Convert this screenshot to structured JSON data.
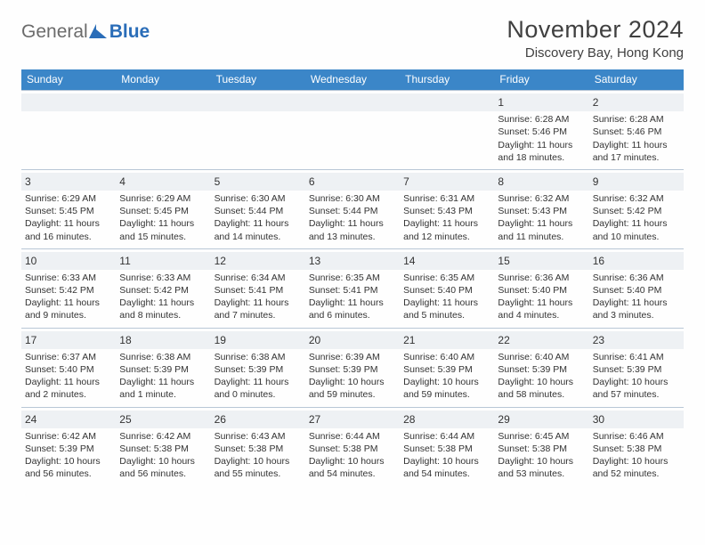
{
  "logo": {
    "text1": "General",
    "text2": "Blue"
  },
  "header": {
    "month_title": "November 2024",
    "location": "Discovery Bay, Hong Kong"
  },
  "weekdays": [
    "Sunday",
    "Monday",
    "Tuesday",
    "Wednesday",
    "Thursday",
    "Friday",
    "Saturday"
  ],
  "style": {
    "page_bg": "#fefefe",
    "header_bg": "#3b86c8",
    "header_text": "#ffffff",
    "daynum_bg": "#eef1f4",
    "grid_border": "#b9c7d6",
    "text_color": "#333333",
    "logo_gray": "#6b6b6b",
    "logo_blue": "#2a6db8",
    "month_title_fontsize": 27,
    "location_fontsize": 15,
    "weekday_fontsize": 12,
    "cell_fontsize": 10.5,
    "daynum_fontsize": 12
  },
  "weeks": [
    [
      {
        "n": "",
        "empty": true
      },
      {
        "n": "",
        "empty": true
      },
      {
        "n": "",
        "empty": true
      },
      {
        "n": "",
        "empty": true
      },
      {
        "n": "",
        "empty": true
      },
      {
        "n": "1",
        "sunrise": "Sunrise: 6:28 AM",
        "sunset": "Sunset: 5:46 PM",
        "daylight1": "Daylight: 11 hours",
        "daylight2": "and 18 minutes."
      },
      {
        "n": "2",
        "sunrise": "Sunrise: 6:28 AM",
        "sunset": "Sunset: 5:46 PM",
        "daylight1": "Daylight: 11 hours",
        "daylight2": "and 17 minutes."
      }
    ],
    [
      {
        "n": "3",
        "sunrise": "Sunrise: 6:29 AM",
        "sunset": "Sunset: 5:45 PM",
        "daylight1": "Daylight: 11 hours",
        "daylight2": "and 16 minutes."
      },
      {
        "n": "4",
        "sunrise": "Sunrise: 6:29 AM",
        "sunset": "Sunset: 5:45 PM",
        "daylight1": "Daylight: 11 hours",
        "daylight2": "and 15 minutes."
      },
      {
        "n": "5",
        "sunrise": "Sunrise: 6:30 AM",
        "sunset": "Sunset: 5:44 PM",
        "daylight1": "Daylight: 11 hours",
        "daylight2": "and 14 minutes."
      },
      {
        "n": "6",
        "sunrise": "Sunrise: 6:30 AM",
        "sunset": "Sunset: 5:44 PM",
        "daylight1": "Daylight: 11 hours",
        "daylight2": "and 13 minutes."
      },
      {
        "n": "7",
        "sunrise": "Sunrise: 6:31 AM",
        "sunset": "Sunset: 5:43 PM",
        "daylight1": "Daylight: 11 hours",
        "daylight2": "and 12 minutes."
      },
      {
        "n": "8",
        "sunrise": "Sunrise: 6:32 AM",
        "sunset": "Sunset: 5:43 PM",
        "daylight1": "Daylight: 11 hours",
        "daylight2": "and 11 minutes."
      },
      {
        "n": "9",
        "sunrise": "Sunrise: 6:32 AM",
        "sunset": "Sunset: 5:42 PM",
        "daylight1": "Daylight: 11 hours",
        "daylight2": "and 10 minutes."
      }
    ],
    [
      {
        "n": "10",
        "sunrise": "Sunrise: 6:33 AM",
        "sunset": "Sunset: 5:42 PM",
        "daylight1": "Daylight: 11 hours",
        "daylight2": "and 9 minutes."
      },
      {
        "n": "11",
        "sunrise": "Sunrise: 6:33 AM",
        "sunset": "Sunset: 5:42 PM",
        "daylight1": "Daylight: 11 hours",
        "daylight2": "and 8 minutes."
      },
      {
        "n": "12",
        "sunrise": "Sunrise: 6:34 AM",
        "sunset": "Sunset: 5:41 PM",
        "daylight1": "Daylight: 11 hours",
        "daylight2": "and 7 minutes."
      },
      {
        "n": "13",
        "sunrise": "Sunrise: 6:35 AM",
        "sunset": "Sunset: 5:41 PM",
        "daylight1": "Daylight: 11 hours",
        "daylight2": "and 6 minutes."
      },
      {
        "n": "14",
        "sunrise": "Sunrise: 6:35 AM",
        "sunset": "Sunset: 5:40 PM",
        "daylight1": "Daylight: 11 hours",
        "daylight2": "and 5 minutes."
      },
      {
        "n": "15",
        "sunrise": "Sunrise: 6:36 AM",
        "sunset": "Sunset: 5:40 PM",
        "daylight1": "Daylight: 11 hours",
        "daylight2": "and 4 minutes."
      },
      {
        "n": "16",
        "sunrise": "Sunrise: 6:36 AM",
        "sunset": "Sunset: 5:40 PM",
        "daylight1": "Daylight: 11 hours",
        "daylight2": "and 3 minutes."
      }
    ],
    [
      {
        "n": "17",
        "sunrise": "Sunrise: 6:37 AM",
        "sunset": "Sunset: 5:40 PM",
        "daylight1": "Daylight: 11 hours",
        "daylight2": "and 2 minutes."
      },
      {
        "n": "18",
        "sunrise": "Sunrise: 6:38 AM",
        "sunset": "Sunset: 5:39 PM",
        "daylight1": "Daylight: 11 hours",
        "daylight2": "and 1 minute."
      },
      {
        "n": "19",
        "sunrise": "Sunrise: 6:38 AM",
        "sunset": "Sunset: 5:39 PM",
        "daylight1": "Daylight: 11 hours",
        "daylight2": "and 0 minutes."
      },
      {
        "n": "20",
        "sunrise": "Sunrise: 6:39 AM",
        "sunset": "Sunset: 5:39 PM",
        "daylight1": "Daylight: 10 hours",
        "daylight2": "and 59 minutes."
      },
      {
        "n": "21",
        "sunrise": "Sunrise: 6:40 AM",
        "sunset": "Sunset: 5:39 PM",
        "daylight1": "Daylight: 10 hours",
        "daylight2": "and 59 minutes."
      },
      {
        "n": "22",
        "sunrise": "Sunrise: 6:40 AM",
        "sunset": "Sunset: 5:39 PM",
        "daylight1": "Daylight: 10 hours",
        "daylight2": "and 58 minutes."
      },
      {
        "n": "23",
        "sunrise": "Sunrise: 6:41 AM",
        "sunset": "Sunset: 5:39 PM",
        "daylight1": "Daylight: 10 hours",
        "daylight2": "and 57 minutes."
      }
    ],
    [
      {
        "n": "24",
        "sunrise": "Sunrise: 6:42 AM",
        "sunset": "Sunset: 5:39 PM",
        "daylight1": "Daylight: 10 hours",
        "daylight2": "and 56 minutes."
      },
      {
        "n": "25",
        "sunrise": "Sunrise: 6:42 AM",
        "sunset": "Sunset: 5:38 PM",
        "daylight1": "Daylight: 10 hours",
        "daylight2": "and 56 minutes."
      },
      {
        "n": "26",
        "sunrise": "Sunrise: 6:43 AM",
        "sunset": "Sunset: 5:38 PM",
        "daylight1": "Daylight: 10 hours",
        "daylight2": "and 55 minutes."
      },
      {
        "n": "27",
        "sunrise": "Sunrise: 6:44 AM",
        "sunset": "Sunset: 5:38 PM",
        "daylight1": "Daylight: 10 hours",
        "daylight2": "and 54 minutes."
      },
      {
        "n": "28",
        "sunrise": "Sunrise: 6:44 AM",
        "sunset": "Sunset: 5:38 PM",
        "daylight1": "Daylight: 10 hours",
        "daylight2": "and 54 minutes."
      },
      {
        "n": "29",
        "sunrise": "Sunrise: 6:45 AM",
        "sunset": "Sunset: 5:38 PM",
        "daylight1": "Daylight: 10 hours",
        "daylight2": "and 53 minutes."
      },
      {
        "n": "30",
        "sunrise": "Sunrise: 6:46 AM",
        "sunset": "Sunset: 5:38 PM",
        "daylight1": "Daylight: 10 hours",
        "daylight2": "and 52 minutes."
      }
    ]
  ]
}
